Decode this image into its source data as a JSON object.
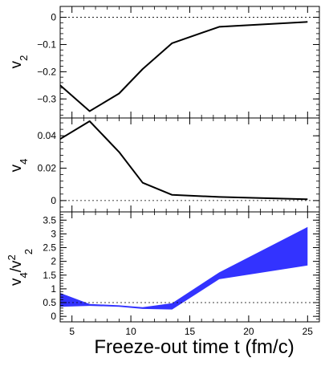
{
  "chart_data": [
    {
      "type": "line",
      "ylabel": "v_2",
      "y_tick_labels": [
        "0",
        "−0.1",
        "−0.2",
        "−0.3"
      ],
      "y_ticks": [
        0,
        -0.1,
        -0.2,
        -0.3
      ],
      "ylim": [
        -0.37,
        0.04
      ],
      "xlim": [
        4,
        26
      ],
      "reference_line": 0,
      "series": [
        {
          "x": [
            4,
            6.5,
            9,
            11,
            13.5,
            17.5,
            25
          ],
          "y": [
            -0.25,
            -0.345,
            -0.28,
            -0.19,
            -0.095,
            -0.035,
            -0.017
          ]
        }
      ]
    },
    {
      "type": "line",
      "ylabel": "v_4",
      "y_tick_labels": [
        "0",
        "0.02",
        "0.04"
      ],
      "y_ticks": [
        0,
        0.02,
        0.04
      ],
      "ylim": [
        -0.007,
        0.051
      ],
      "xlim": [
        4,
        26
      ],
      "reference_line": 0,
      "series": [
        {
          "x": [
            4,
            6.5,
            9,
            11,
            13.5,
            17.5,
            25
          ],
          "y": [
            0.038,
            0.049,
            0.03,
            0.011,
            0.0035,
            0.0022,
            0.0008
          ]
        }
      ]
    },
    {
      "type": "area",
      "ylabel": "v_4/v_2^2",
      "xlabel": "Freeze-out time t (fm/c)",
      "y_tick_labels": [
        "0",
        "0.5",
        "1",
        "1.5",
        "2",
        "2.5",
        "3",
        "3.5"
      ],
      "y_ticks": [
        0,
        0.5,
        1,
        1.5,
        2,
        2.5,
        3,
        3.5
      ],
      "x_tick_labels": [
        "5",
        "10",
        "15",
        "20",
        "25"
      ],
      "x_ticks": [
        5,
        10,
        15,
        20,
        25
      ],
      "ylim": [
        -0.2,
        3.8
      ],
      "xlim": [
        4,
        26
      ],
      "reference_line": 0.5,
      "band_color": "#3333ff",
      "band": {
        "x": [
          4,
          6.5,
          9,
          11,
          13.5,
          17.5,
          25
        ],
        "upper": [
          0.85,
          0.45,
          0.4,
          0.33,
          0.48,
          1.6,
          3.25
        ],
        "lower": [
          0.35,
          0.38,
          0.35,
          0.27,
          0.25,
          1.35,
          1.85
        ]
      }
    }
  ]
}
